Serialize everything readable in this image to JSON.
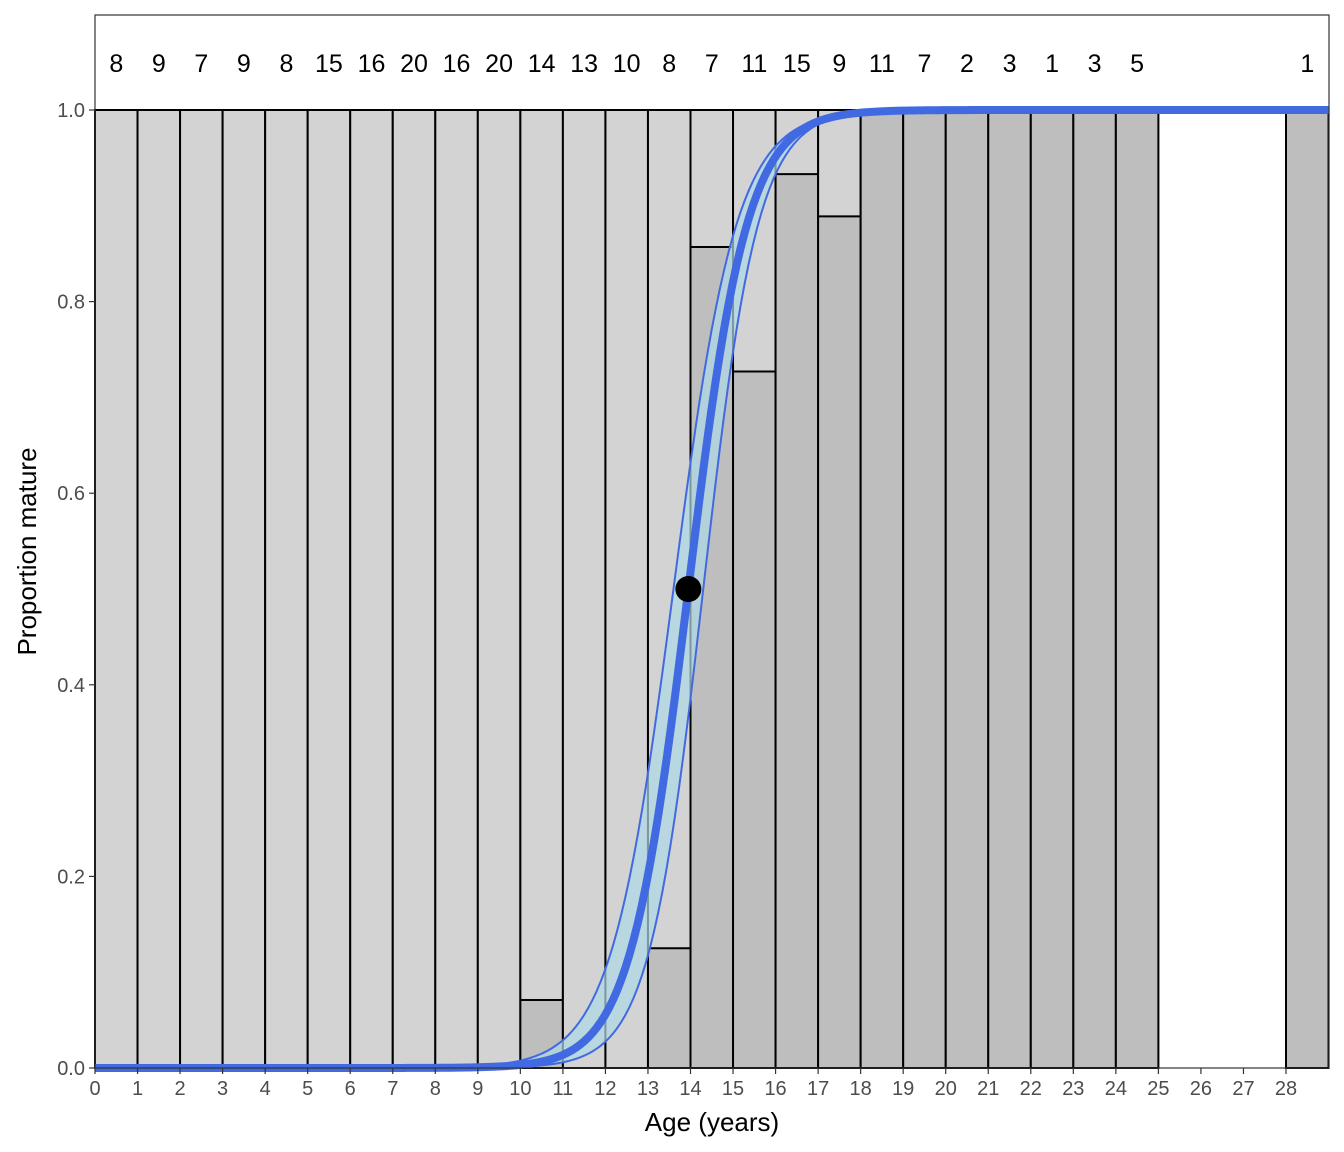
{
  "chart_data": {
    "type": "bar",
    "xlabel": "Age (years)",
    "ylabel": "Proportion mature",
    "xlim": [
      0,
      29
    ],
    "ylim": [
      0,
      1
    ],
    "x_ticks": [
      0,
      1,
      2,
      3,
      4,
      5,
      6,
      7,
      8,
      9,
      10,
      11,
      12,
      13,
      14,
      15,
      16,
      17,
      18,
      19,
      20,
      21,
      22,
      23,
      24,
      25,
      26,
      27,
      28
    ],
    "y_ticks": [
      0.0,
      0.2,
      0.4,
      0.6,
      0.8,
      1.0
    ],
    "y_tick_labels": [
      "0.0",
      "0.2",
      "0.4",
      "0.6",
      "0.8",
      "1.0"
    ],
    "grid": false,
    "bars": [
      {
        "age": 0,
        "n": 8,
        "proportion_mature": 0.0
      },
      {
        "age": 1,
        "n": 9,
        "proportion_mature": 0.0
      },
      {
        "age": 2,
        "n": 7,
        "proportion_mature": 0.0
      },
      {
        "age": 3,
        "n": 9,
        "proportion_mature": 0.0
      },
      {
        "age": 4,
        "n": 8,
        "proportion_mature": 0.0
      },
      {
        "age": 5,
        "n": 15,
        "proportion_mature": 0.0
      },
      {
        "age": 6,
        "n": 16,
        "proportion_mature": 0.0
      },
      {
        "age": 7,
        "n": 20,
        "proportion_mature": 0.0
      },
      {
        "age": 8,
        "n": 16,
        "proportion_mature": 0.0
      },
      {
        "age": 9,
        "n": 20,
        "proportion_mature": 0.0
      },
      {
        "age": 10,
        "n": 14,
        "proportion_mature": 0.071
      },
      {
        "age": 11,
        "n": 13,
        "proportion_mature": 0.0
      },
      {
        "age": 12,
        "n": 10,
        "proportion_mature": 0.0
      },
      {
        "age": 13,
        "n": 8,
        "proportion_mature": 0.125
      },
      {
        "age": 14,
        "n": 7,
        "proportion_mature": 0.857
      },
      {
        "age": 15,
        "n": 11,
        "proportion_mature": 0.727
      },
      {
        "age": 16,
        "n": 15,
        "proportion_mature": 0.933
      },
      {
        "age": 17,
        "n": 9,
        "proportion_mature": 0.889
      },
      {
        "age": 18,
        "n": 11,
        "proportion_mature": 1.0
      },
      {
        "age": 19,
        "n": 7,
        "proportion_mature": 1.0
      },
      {
        "age": 20,
        "n": 2,
        "proportion_mature": 1.0
      },
      {
        "age": 21,
        "n": 3,
        "proportion_mature": 1.0
      },
      {
        "age": 22,
        "n": 1,
        "proportion_mature": 1.0
      },
      {
        "age": 23,
        "n": 3,
        "proportion_mature": 1.0
      },
      {
        "age": 24,
        "n": 5,
        "proportion_mature": 1.0
      },
      {
        "age": 28,
        "n": 1,
        "proportion_mature": 1.0
      }
    ],
    "fitted_curve": {
      "type": "logistic",
      "a50": 13.95,
      "slope": 1.45,
      "ci_lower_slope": 1.55,
      "ci_upper_slope": 1.35,
      "ci_lower_a50": 14.3,
      "ci_upper_a50": 13.6
    },
    "a50_point": {
      "x": 13.95,
      "y": 0.5
    },
    "colors": {
      "immature_fill": "#d3d3d3",
      "mature_fill": "#bebebe",
      "bar_outline": "#000000",
      "curve": "#4169e1",
      "ci_fill": "#add8e6",
      "point": "#000000"
    }
  }
}
